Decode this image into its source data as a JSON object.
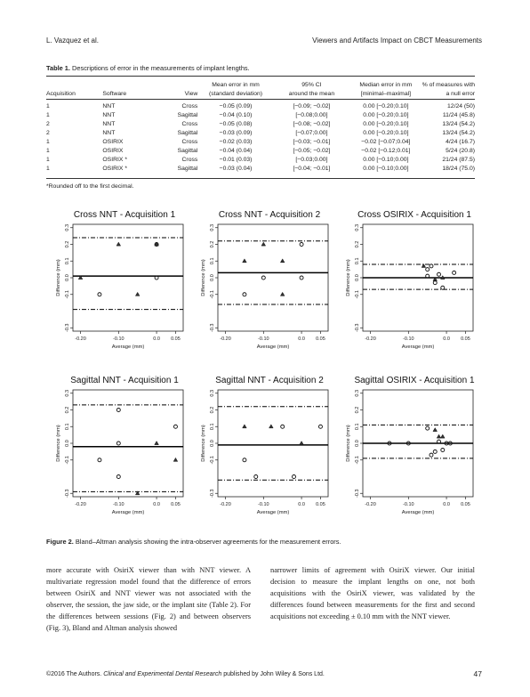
{
  "header": {
    "left": "L. Vazquez et al.",
    "right": "Viewers and Artifacts Impact on CBCT Measurements"
  },
  "table": {
    "label": "Table 1.",
    "caption": "Descriptions of error in the measurements of implant lengths.",
    "columns": [
      {
        "line1": "",
        "line2": "Acquisition"
      },
      {
        "line1": "",
        "line2": "Software"
      },
      {
        "line1": "",
        "line2": "View"
      },
      {
        "line1": "Mean error in mm",
        "line2": "(standard deviation)"
      },
      {
        "line1": "95% CI",
        "line2": "around the mean"
      },
      {
        "line1": "Median error in mm",
        "line2": "[minimal–maximal]"
      },
      {
        "line1": "% of measures with",
        "line2": "a null error"
      }
    ],
    "rows": [
      [
        "1",
        "NNT",
        "Cross",
        "−0.05 (0.09)",
        "[−0.09; −0.02]",
        "0.00 [−0.20;0.10]",
        "12/24 (50)"
      ],
      [
        "1",
        "NNT",
        "Sagittal",
        "−0.04 (0.10)",
        "[−0.08;0.00]",
        "0.00 [−0.20;0.10]",
        "11/24 (45.8)"
      ],
      [
        "2",
        "NNT",
        "Cross",
        "−0.05 (0.08)",
        "[−0.08; −0.02]",
        "0.00 [−0.20;0.10]",
        "13/24 (54.2)"
      ],
      [
        "2",
        "NNT",
        "Sagittal",
        "−0.03 (0.09)",
        "[−0.07;0.00]",
        "0.00 [−0.20;0.10]",
        "13/24 (54.2)"
      ],
      [
        "1",
        "OSIRIX",
        "Cross",
        "−0.02 (0.03)",
        "[−0.03; −0.01]",
        "−0.02 [−0.07;0.04]",
        "4/24 (16.7)"
      ],
      [
        "1",
        "OSIRIX",
        "Sagittal",
        "−0.04 (0.04)",
        "[−0.05; −0.02]",
        "−0.02 [−0.12;0.01]",
        "5/24 (20.8)"
      ],
      [
        "1",
        "OSIRIX *",
        "Cross",
        "−0.01 (0.03)",
        "[−0.03;0.00]",
        "0.00 [−0.10;0.00]",
        "21/24 (87.5)"
      ],
      [
        "1",
        "OSIRIX *",
        "Sagittal",
        "−0.03 (0.04)",
        "[−0.04; −0.01]",
        "0.00 [−0.10;0.00]",
        "18/24 (75.0)"
      ]
    ],
    "footnote": "*Rounded off to the first decimal."
  },
  "figure": {
    "label": "Figure 2.",
    "caption": "Bland–Altman analysis showing the intra-observer agreements for the measurement errors."
  },
  "chart_data": [
    {
      "type": "scatter",
      "title": "Cross NNT - Acquisition 1",
      "xlabel": "Average (mm)",
      "ylabel": "Difference (mm)",
      "xlim": [
        -0.22,
        0.07
      ],
      "ylim": [
        -0.32,
        0.32
      ],
      "xticks": [
        "-0.20",
        "-0.10",
        "0.0",
        "0.05"
      ],
      "yticks": [
        "-0.3",
        "-0.1",
        "0.0",
        "0.1",
        "0.2",
        "0.3"
      ],
      "mean": 0.01,
      "upper_loa": 0.24,
      "lower_loa": -0.19,
      "points": [
        {
          "x": -0.2,
          "y": 0.0,
          "m": "triangle"
        },
        {
          "x": -0.15,
          "y": -0.1,
          "m": "circle"
        },
        {
          "x": -0.1,
          "y": 0.2,
          "m": "triangle"
        },
        {
          "x": -0.05,
          "y": -0.1,
          "m": "triangle"
        },
        {
          "x": 0.0,
          "y": 0.0,
          "m": "circle"
        },
        {
          "x": 0.0,
          "y": 0.2,
          "m": "circle"
        },
        {
          "x": 0.0,
          "y": 0.2,
          "m": "triangle"
        }
      ]
    },
    {
      "type": "scatter",
      "title": "Cross NNT - Acquisition 2",
      "xlabel": "Average (mm)",
      "ylabel": "Difference (mm)",
      "xlim": [
        -0.22,
        0.07
      ],
      "ylim": [
        -0.32,
        0.32
      ],
      "xticks": [
        "-0.20",
        "-0.10",
        "0.0",
        "0.05"
      ],
      "yticks": [
        "-0.3",
        "-0.1",
        "0.0",
        "0.1",
        "0.2",
        "0.3"
      ],
      "mean": 0.03,
      "upper_loa": 0.22,
      "lower_loa": -0.16,
      "points": [
        {
          "x": -0.15,
          "y": 0.1,
          "m": "triangle"
        },
        {
          "x": -0.15,
          "y": -0.1,
          "m": "circle"
        },
        {
          "x": -0.1,
          "y": 0.2,
          "m": "triangle"
        },
        {
          "x": -0.1,
          "y": 0.0,
          "m": "circle"
        },
        {
          "x": -0.05,
          "y": 0.1,
          "m": "triangle"
        },
        {
          "x": -0.05,
          "y": -0.1,
          "m": "triangle"
        },
        {
          "x": 0.0,
          "y": 0.2,
          "m": "circle"
        },
        {
          "x": 0.0,
          "y": 0.0,
          "m": "circle"
        }
      ]
    },
    {
      "type": "scatter",
      "title": "Cross OSIRIX - Acquisition 1",
      "xlabel": "Average (mm)",
      "ylabel": "Difference (mm)",
      "xlim": [
        -0.22,
        0.07
      ],
      "ylim": [
        -0.32,
        0.32
      ],
      "xticks": [
        "-0.20",
        "-0.10",
        "0.0",
        "0.05"
      ],
      "yticks": [
        "-0.3",
        "-0.1",
        "0.0",
        "0.1",
        "0.2",
        "0.3"
      ],
      "mean": 0.0,
      "upper_loa": 0.08,
      "lower_loa": -0.07,
      "points": [
        {
          "x": -0.06,
          "y": 0.07,
          "m": "triangle"
        },
        {
          "x": -0.05,
          "y": 0.05,
          "m": "circle"
        },
        {
          "x": -0.04,
          "y": 0.07,
          "m": "circle"
        },
        {
          "x": -0.05,
          "y": 0.01,
          "m": "circle"
        },
        {
          "x": -0.03,
          "y": -0.01,
          "m": "triangle"
        },
        {
          "x": -0.03,
          "y": -0.03,
          "m": "circle"
        },
        {
          "x": -0.02,
          "y": 0.02,
          "m": "circle"
        },
        {
          "x": -0.01,
          "y": 0.0,
          "m": "triangle"
        },
        {
          "x": -0.01,
          "y": -0.06,
          "m": "circle"
        },
        {
          "x": 0.02,
          "y": 0.03,
          "m": "circle"
        }
      ]
    },
    {
      "type": "scatter",
      "title": "Sagittal NNT - Acquisition 1",
      "xlabel": "Average (mm)",
      "ylabel": "Difference (mm)",
      "xlim": [
        -0.22,
        0.07
      ],
      "ylim": [
        -0.32,
        0.32
      ],
      "xticks": [
        "-0.20",
        "-0.10",
        "0.0",
        "0.05"
      ],
      "yticks": [
        "-0.3",
        "-0.1",
        "0.0",
        "0.1",
        "0.2",
        "0.3"
      ],
      "mean": -0.02,
      "upper_loa": 0.23,
      "lower_loa": -0.29,
      "points": [
        {
          "x": -0.15,
          "y": -0.1,
          "m": "circle"
        },
        {
          "x": -0.1,
          "y": 0.2,
          "m": "circle"
        },
        {
          "x": -0.1,
          "y": 0.0,
          "m": "circle"
        },
        {
          "x": -0.1,
          "y": -0.2,
          "m": "circle"
        },
        {
          "x": -0.05,
          "y": -0.3,
          "m": "triangle"
        },
        {
          "x": 0.0,
          "y": 0.0,
          "m": "triangle"
        },
        {
          "x": 0.05,
          "y": 0.1,
          "m": "circle"
        },
        {
          "x": 0.05,
          "y": -0.1,
          "m": "triangle"
        }
      ]
    },
    {
      "type": "scatter",
      "title": "Sagittal NNT - Acquisition 2",
      "xlabel": "Average (mm)",
      "ylabel": "Difference (mm)",
      "xlim": [
        -0.22,
        0.07
      ],
      "ylim": [
        -0.32,
        0.32
      ],
      "xticks": [
        "-0.20",
        "-0.10",
        "0.0",
        "0.05"
      ],
      "yticks": [
        "-0.3",
        "-0.1",
        "0.0",
        "0.1",
        "0.2",
        "0.3"
      ],
      "mean": -0.01,
      "upper_loa": 0.22,
      "lower_loa": -0.22,
      "points": [
        {
          "x": -0.15,
          "y": 0.1,
          "m": "triangle"
        },
        {
          "x": -0.15,
          "y": -0.1,
          "m": "circle"
        },
        {
          "x": -0.12,
          "y": -0.2,
          "m": "circle"
        },
        {
          "x": -0.08,
          "y": 0.1,
          "m": "triangle"
        },
        {
          "x": -0.05,
          "y": 0.1,
          "m": "circle"
        },
        {
          "x": -0.02,
          "y": -0.2,
          "m": "circle"
        },
        {
          "x": 0.0,
          "y": 0.0,
          "m": "triangle"
        },
        {
          "x": 0.05,
          "y": 0.1,
          "m": "circle"
        }
      ]
    },
    {
      "type": "scatter",
      "title": "Sagittal OSIRIX - Acquisition 1",
      "xlabel": "Average (mm)",
      "ylabel": "Difference (mm)",
      "xlim": [
        -0.22,
        0.07
      ],
      "ylim": [
        -0.32,
        0.32
      ],
      "xticks": [
        "-0.20",
        "-0.10",
        "0.0",
        "0.05"
      ],
      "yticks": [
        "-0.3",
        "-0.1",
        "0.0",
        "0.1",
        "0.2",
        "0.3"
      ],
      "mean": 0.0,
      "upper_loa": 0.11,
      "lower_loa": -0.09,
      "points": [
        {
          "x": -0.15,
          "y": 0.0,
          "m": "circle"
        },
        {
          "x": -0.1,
          "y": 0.0,
          "m": "circle"
        },
        {
          "x": -0.05,
          "y": 0.09,
          "m": "circle"
        },
        {
          "x": -0.04,
          "y": -0.07,
          "m": "circle"
        },
        {
          "x": -0.03,
          "y": 0.08,
          "m": "triangle"
        },
        {
          "x": -0.03,
          "y": -0.05,
          "m": "circle"
        },
        {
          "x": -0.02,
          "y": 0.04,
          "m": "triangle"
        },
        {
          "x": -0.02,
          "y": 0.01,
          "m": "circle"
        },
        {
          "x": -0.01,
          "y": 0.04,
          "m": "triangle"
        },
        {
          "x": -0.01,
          "y": -0.04,
          "m": "circle"
        },
        {
          "x": 0.0,
          "y": 0.0,
          "m": "circle"
        },
        {
          "x": 0.01,
          "y": 0.0,
          "m": "circle"
        }
      ]
    }
  ],
  "body": {
    "left": "more accurate with OsiriX viewer than with NNT viewer. A multivariate regression model found that the difference of errors between OsiriX and NNT viewer was not associated with the observer, the session, the jaw side, or the implant site (Table 2). For the differences between sessions (Fig. 2) and between observers (Fig. 3), Bland and Altman analysis showed",
    "right": "narrower limits of agreement with OsiriX viewer. Our initial decision to measure the implant lengths on one, not both acquisitions with the OsiriX viewer, was validated by the differences found between measurements for the first and second acquisitions not exceeding ± 0.10 mm with the NNT viewer."
  },
  "footer": {
    "copyright": "©2016 The Authors.",
    "journal": "Clinical and Experimental Dental Research",
    "publisher": "published by John Wiley & Sons Ltd.",
    "page": "47"
  }
}
